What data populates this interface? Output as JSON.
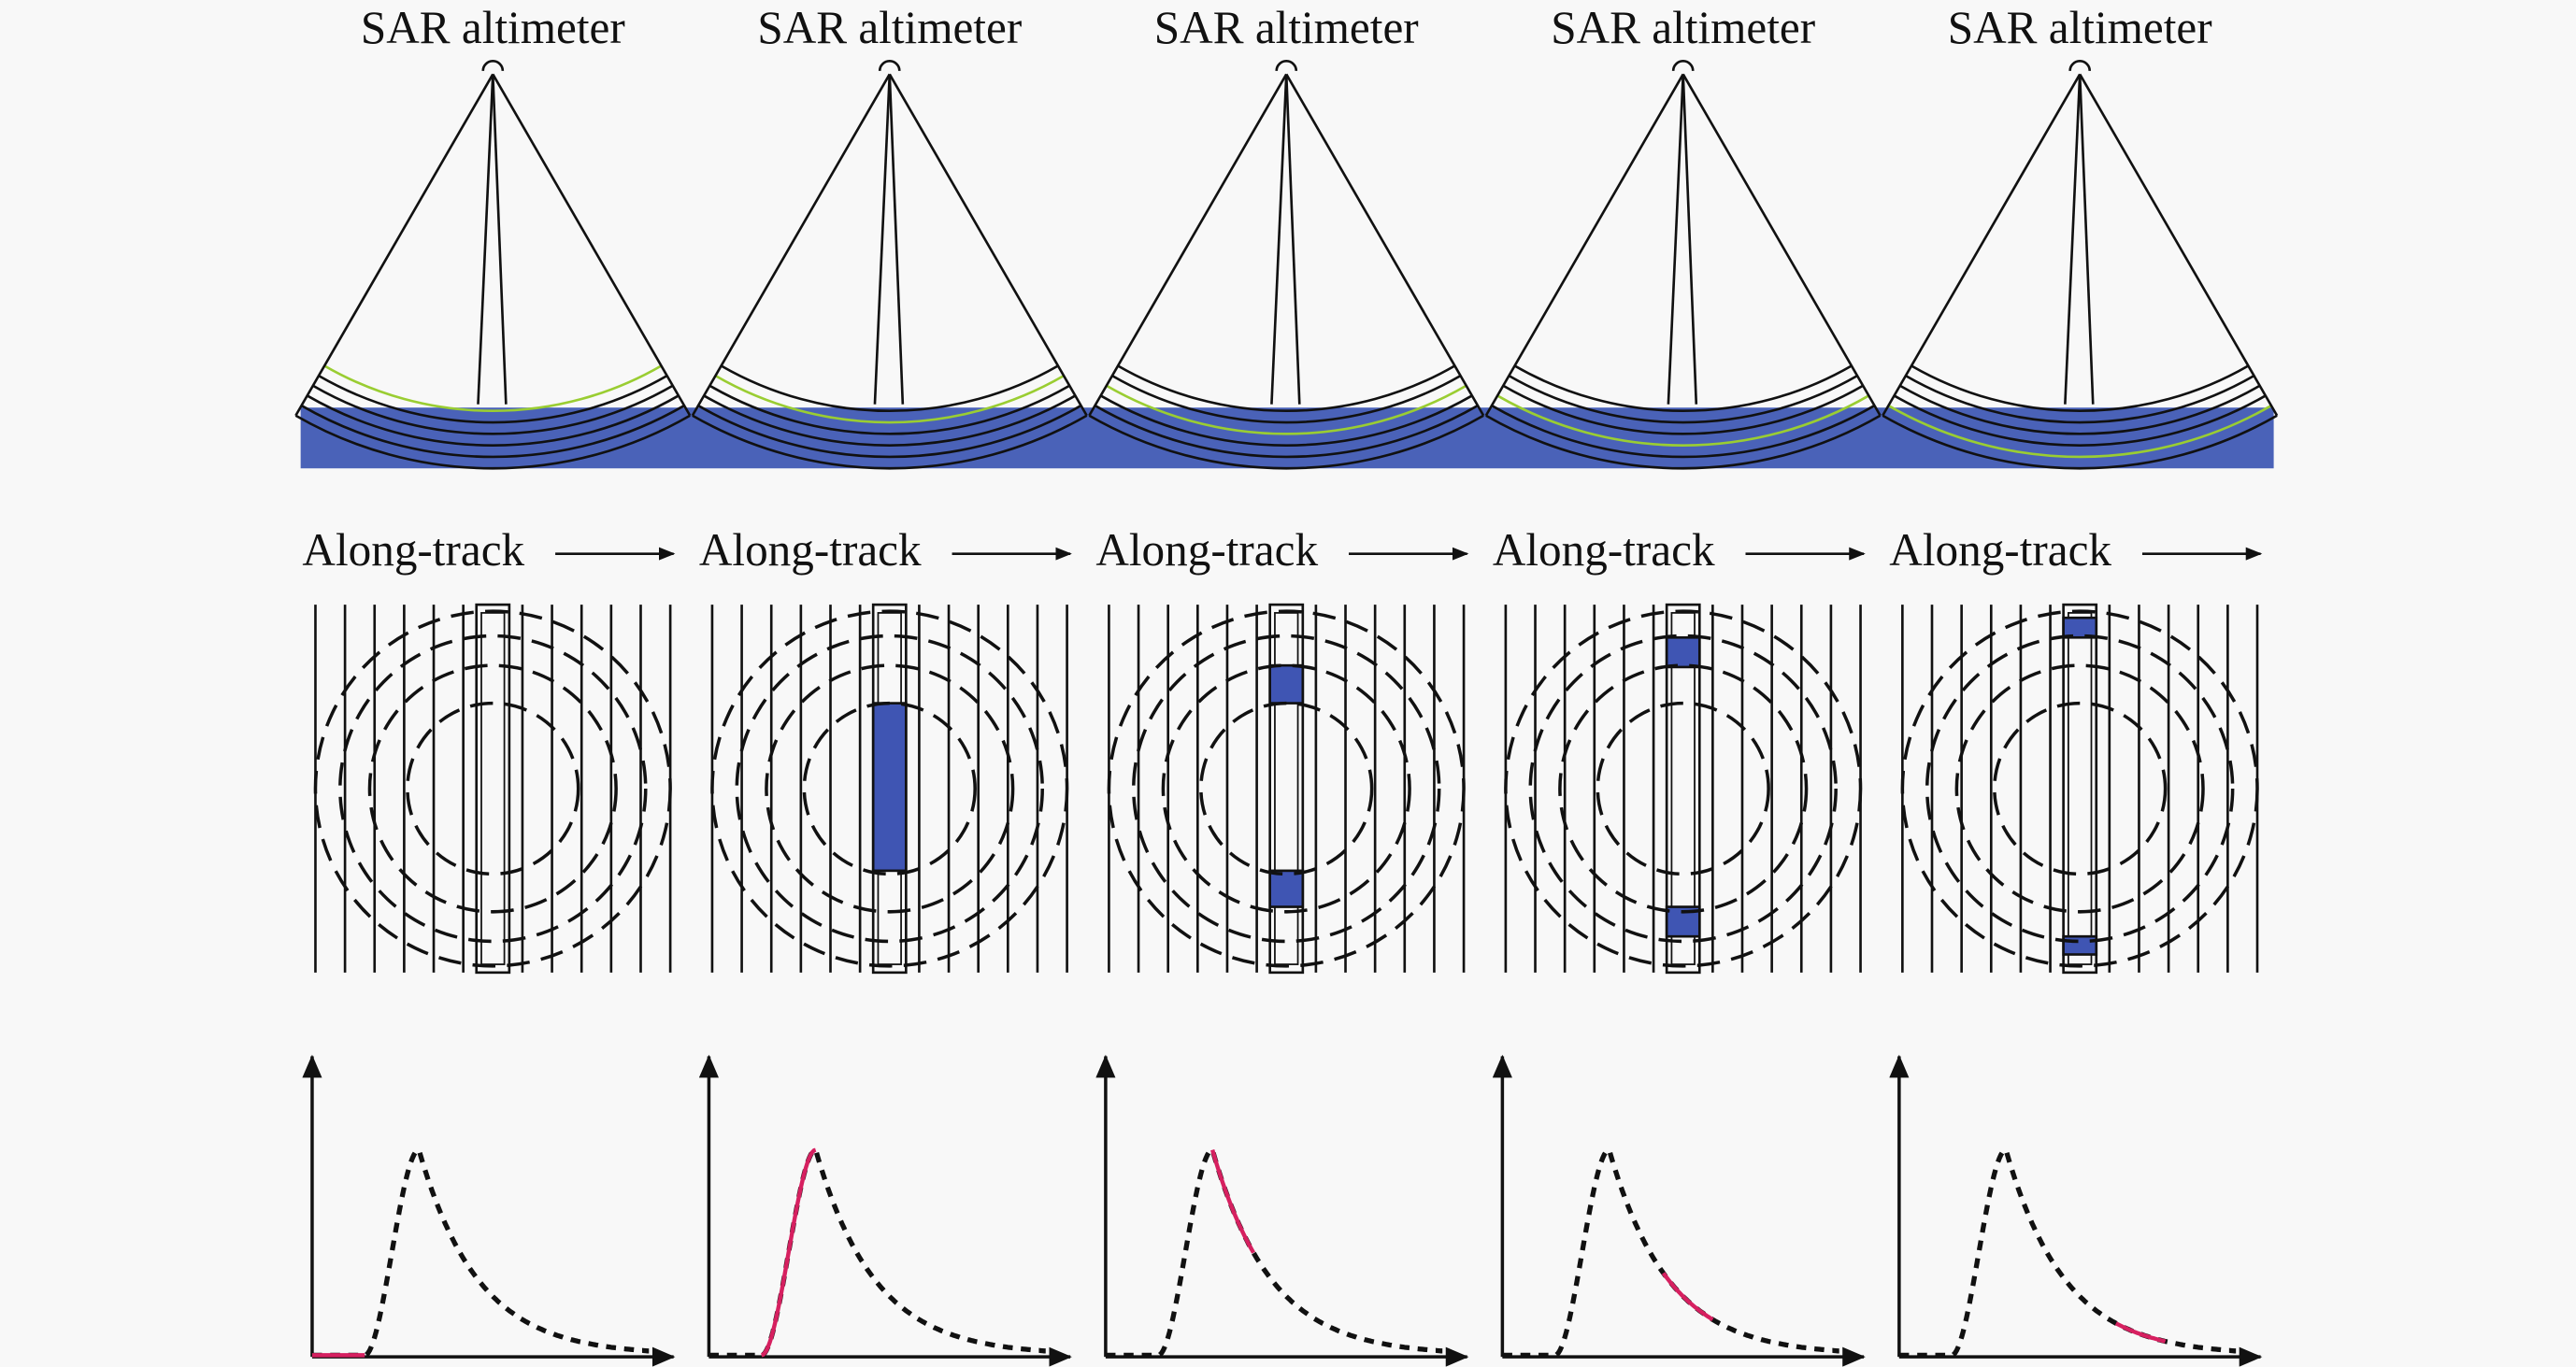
{
  "panels": [
    {
      "title": "SAR altimeter",
      "direction_label": "Along-track"
    },
    {
      "title": "SAR altimeter",
      "direction_label": "Along-track"
    },
    {
      "title": "SAR altimeter",
      "direction_label": "Along-track"
    },
    {
      "title": "SAR altimeter",
      "direction_label": "Along-track"
    },
    {
      "title": "SAR altimeter",
      "direction_label": "Along-track"
    }
  ]
}
